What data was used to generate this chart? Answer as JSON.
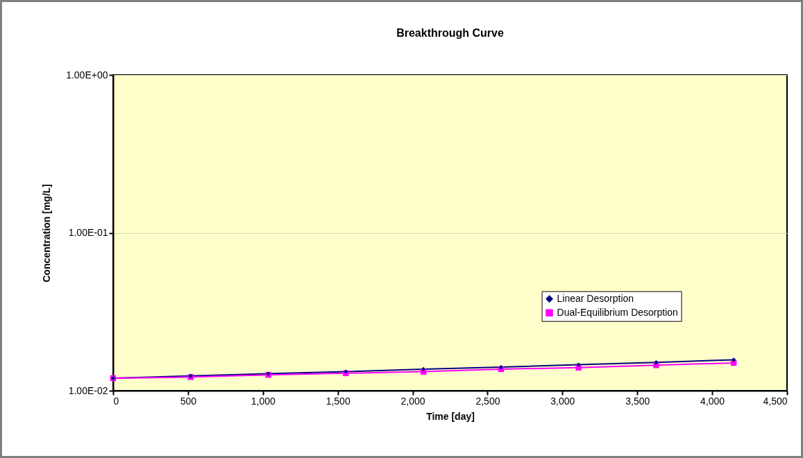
{
  "chart_data": {
    "type": "line",
    "title": "Breakthrough Curve",
    "xlabel": "Time [day]",
    "ylabel": "Concentration [mg/L]",
    "x": [
      0,
      518,
      1036,
      1554,
      2072,
      2590,
      3108,
      3626,
      4144
    ],
    "series": [
      {
        "name": "Linear Desorption",
        "color": "#000080",
        "marker": "diamond",
        "values": [
          0.012,
          0.0124,
          0.0128,
          0.0132,
          0.0137,
          0.0141,
          0.0146,
          0.0151,
          0.0157
        ]
      },
      {
        "name": "Dual-Equilibrium Desorption",
        "color": "#ff00ff",
        "marker": "square",
        "values": [
          0.012,
          0.0122,
          0.0126,
          0.0129,
          0.0132,
          0.0137,
          0.014,
          0.0145,
          0.015
        ]
      }
    ],
    "xlim": [
      0,
      4500
    ],
    "xticks": [
      0,
      500,
      {
        "value": 1000,
        "label": "1,000"
      },
      {
        "value": 1500,
        "label": "1,500"
      },
      {
        "value": 2000,
        "label": "2,000"
      },
      {
        "value": 2500,
        "label": "2,500"
      },
      {
        "value": 3000,
        "label": "3,000"
      },
      {
        "value": 3500,
        "label": "3,500"
      },
      {
        "value": 4000,
        "label": "4,000"
      },
      {
        "value": 4500,
        "label": "4,500"
      }
    ],
    "ylim": [
      0.01,
      1
    ],
    "yticks": [
      {
        "value": 0.01,
        "label": "1.00E-02"
      },
      {
        "value": 0.1,
        "label": "1.00E-01"
      },
      {
        "value": 1,
        "label": "1.00E+00"
      }
    ],
    "log": true,
    "grid": "y",
    "legend": "right"
  }
}
